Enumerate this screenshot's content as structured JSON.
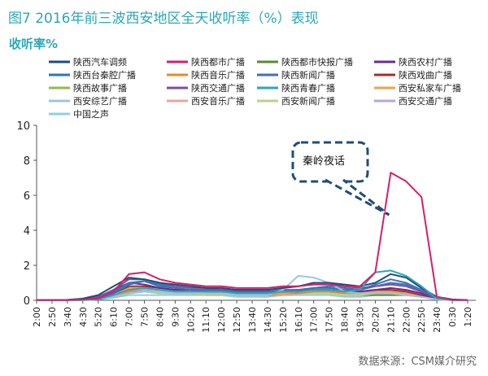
{
  "figure_title": "图7  2016年前三波西安地区全天收听率（%）表现",
  "unit_title": "收听率%",
  "source": "数据来源：CSM媒介研究",
  "colors": {
    "accent": "#2aa7b6"
  },
  "chart_data": {
    "type": "line",
    "xlabel": "",
    "ylabel": "",
    "ylim": [
      0,
      10
    ],
    "yticks": [
      0,
      2,
      4,
      6,
      8,
      10
    ],
    "grid": false,
    "legend_position": "top",
    "x": [
      "2:00",
      "2:50",
      "3:40",
      "4:30",
      "5:20",
      "6:10",
      "7:00",
      "7:50",
      "8:40",
      "9:30",
      "10:20",
      "11:10",
      "12:00",
      "12:50",
      "13:40",
      "14:30",
      "15:20",
      "16:10",
      "17:00",
      "17:50",
      "18:40",
      "19:30",
      "20:20",
      "21:10",
      "22:00",
      "22:50",
      "23:40",
      "0:30",
      "1:20"
    ],
    "annotation": "秦岭夜话",
    "series": [
      {
        "name": "陕西汽车调频",
        "color": "#1f4e79",
        "values": [
          0.02,
          0.02,
          0.03,
          0.1,
          0.3,
          0.8,
          1.3,
          1.2,
          1.0,
          0.9,
          0.8,
          0.7,
          0.7,
          0.6,
          0.6,
          0.6,
          0.7,
          0.8,
          1.0,
          1.0,
          0.9,
          0.8,
          1.0,
          1.5,
          1.3,
          0.7,
          0.2,
          0.05,
          0.02
        ]
      },
      {
        "name": "陕西都市广播",
        "color": "#d61f69",
        "values": [
          0.02,
          0.02,
          0.02,
          0.05,
          0.1,
          0.5,
          1.5,
          1.6,
          1.2,
          1.0,
          0.9,
          0.8,
          0.8,
          0.7,
          0.7,
          0.7,
          0.8,
          0.8,
          0.9,
          0.9,
          0.8,
          0.8,
          1.6,
          7.3,
          6.8,
          5.9,
          0.2,
          0.03,
          0.02
        ]
      },
      {
        "name": "陕西都市快报广播",
        "color": "#5c8a34",
        "values": [
          0.01,
          0.01,
          0.01,
          0.02,
          0.05,
          0.2,
          0.4,
          0.5,
          0.4,
          0.4,
          0.4,
          0.3,
          0.3,
          0.3,
          0.3,
          0.3,
          0.3,
          0.4,
          0.4,
          0.4,
          0.3,
          0.3,
          0.3,
          0.3,
          0.3,
          0.2,
          0.1,
          0.02,
          0.01
        ]
      },
      {
        "name": "陕西农村广播",
        "color": "#6a2c8c",
        "values": [
          0.02,
          0.02,
          0.02,
          0.05,
          0.2,
          0.6,
          1.0,
          0.9,
          0.7,
          0.6,
          0.6,
          0.5,
          0.5,
          0.5,
          0.5,
          0.5,
          0.5,
          0.6,
          0.6,
          0.6,
          0.5,
          0.5,
          0.6,
          0.7,
          0.6,
          0.4,
          0.1,
          0.02,
          0.02
        ]
      },
      {
        "name": "陕西台秦腔广播",
        "color": "#2e75b6",
        "values": [
          0.02,
          0.02,
          0.02,
          0.05,
          0.1,
          0.4,
          0.9,
          1.1,
          0.9,
          0.7,
          0.6,
          0.6,
          0.5,
          0.5,
          0.5,
          0.5,
          0.5,
          0.6,
          0.7,
          0.8,
          0.7,
          0.6,
          0.8,
          1.0,
          0.9,
          0.5,
          0.1,
          0.02,
          0.02
        ]
      },
      {
        "name": "陕西音乐广播",
        "color": "#e38b2e",
        "values": [
          0.01,
          0.01,
          0.01,
          0.02,
          0.05,
          0.2,
          0.5,
          0.6,
          0.5,
          0.4,
          0.4,
          0.4,
          0.4,
          0.3,
          0.3,
          0.3,
          0.4,
          0.4,
          0.5,
          0.5,
          0.4,
          0.4,
          0.5,
          0.5,
          0.4,
          0.3,
          0.1,
          0.02,
          0.01
        ]
      },
      {
        "name": "陕西新闻广播",
        "color": "#3f6fb5",
        "values": [
          0.02,
          0.02,
          0.02,
          0.05,
          0.15,
          0.5,
          1.0,
          1.1,
          0.8,
          0.7,
          0.6,
          0.6,
          0.6,
          0.5,
          0.5,
          0.5,
          0.6,
          0.6,
          0.7,
          0.7,
          0.6,
          0.6,
          0.9,
          1.2,
          1.0,
          0.6,
          0.1,
          0.02,
          0.02
        ]
      },
      {
        "name": "陕西戏曲广播",
        "color": "#a0302c",
        "values": [
          0.02,
          0.02,
          0.02,
          0.04,
          0.1,
          0.4,
          0.8,
          0.8,
          0.7,
          0.6,
          0.6,
          0.5,
          0.5,
          0.5,
          0.5,
          0.5,
          0.5,
          0.5,
          0.6,
          0.6,
          0.5,
          0.5,
          0.6,
          0.6,
          0.5,
          0.3,
          0.1,
          0.02,
          0.02
        ]
      },
      {
        "name": "陕西故事广播",
        "color": "#8fbc4a",
        "values": [
          0.01,
          0.01,
          0.01,
          0.02,
          0.05,
          0.2,
          0.4,
          0.5,
          0.4,
          0.4,
          0.4,
          0.3,
          0.4,
          0.3,
          0.3,
          0.3,
          0.4,
          0.4,
          0.4,
          0.4,
          0.3,
          0.3,
          0.4,
          0.4,
          0.3,
          0.2,
          0.05,
          0.01,
          0.01
        ]
      },
      {
        "name": "陕西交通广播",
        "color": "#7a4fa3",
        "values": [
          0.02,
          0.02,
          0.02,
          0.05,
          0.2,
          0.6,
          1.2,
          1.2,
          1.0,
          0.8,
          0.7,
          0.7,
          0.6,
          0.6,
          0.6,
          0.6,
          0.7,
          0.8,
          1.0,
          1.0,
          0.8,
          0.7,
          0.8,
          0.9,
          0.8,
          0.5,
          0.1,
          0.02,
          0.02
        ]
      },
      {
        "name": "陕西青春广播",
        "color": "#2aa7b6",
        "values": [
          0.01,
          0.01,
          0.01,
          0.02,
          0.05,
          0.3,
          0.6,
          0.7,
          0.6,
          0.5,
          0.5,
          0.5,
          0.5,
          0.4,
          0.4,
          0.4,
          0.5,
          0.5,
          0.6,
          0.6,
          0.5,
          0.6,
          1.6,
          1.7,
          1.4,
          0.8,
          0.1,
          0.02,
          0.01
        ]
      },
      {
        "name": "西安私家车广播",
        "color": "#f0a04b",
        "values": [
          0.01,
          0.01,
          0.01,
          0.03,
          0.1,
          0.3,
          0.7,
          0.7,
          0.6,
          0.5,
          0.5,
          0.4,
          0.4,
          0.4,
          0.4,
          0.4,
          0.4,
          0.5,
          0.6,
          0.6,
          0.5,
          0.4,
          0.5,
          0.5,
          0.4,
          0.3,
          0.05,
          0.01,
          0.01
        ]
      },
      {
        "name": "西安综艺广播",
        "color": "#9dc3e6",
        "values": [
          0.01,
          0.01,
          0.01,
          0.02,
          0.05,
          0.2,
          0.4,
          0.5,
          0.5,
          0.4,
          0.4,
          0.4,
          0.4,
          0.3,
          0.3,
          0.3,
          0.6,
          1.4,
          1.3,
          1.0,
          0.5,
          0.4,
          0.4,
          0.4,
          0.3,
          0.2,
          0.05,
          0.01,
          0.01
        ]
      },
      {
        "name": "西安音乐广播",
        "color": "#e6a79c",
        "values": [
          0.01,
          0.01,
          0.01,
          0.02,
          0.05,
          0.2,
          0.4,
          0.5,
          0.4,
          0.4,
          0.4,
          0.3,
          0.3,
          0.3,
          0.3,
          0.3,
          0.3,
          0.4,
          0.4,
          0.4,
          0.3,
          0.3,
          0.4,
          0.4,
          0.3,
          0.2,
          0.05,
          0.01,
          0.01
        ]
      },
      {
        "name": "西安新闻广播",
        "color": "#b5d48a",
        "values": [
          0.01,
          0.01,
          0.01,
          0.02,
          0.05,
          0.2,
          0.5,
          0.5,
          0.4,
          0.4,
          0.4,
          0.3,
          0.3,
          0.3,
          0.3,
          0.3,
          0.4,
          0.4,
          0.4,
          0.4,
          0.3,
          0.3,
          0.4,
          0.4,
          0.3,
          0.2,
          0.05,
          0.01,
          0.01
        ]
      },
      {
        "name": "西安交通广播",
        "color": "#b4a7d6",
        "values": [
          0.01,
          0.01,
          0.01,
          0.03,
          0.1,
          0.3,
          0.6,
          0.6,
          0.5,
          0.5,
          0.5,
          0.4,
          0.4,
          0.4,
          0.4,
          0.4,
          0.5,
          0.5,
          0.6,
          0.6,
          0.5,
          0.4,
          0.5,
          0.5,
          0.4,
          0.3,
          0.05,
          0.01,
          0.01
        ]
      },
      {
        "name": "中国之声",
        "color": "#8fd0dc",
        "values": [
          0.01,
          0.01,
          0.01,
          0.02,
          0.05,
          0.15,
          0.3,
          0.3,
          0.3,
          0.3,
          0.3,
          0.3,
          0.3,
          0.2,
          0.2,
          0.2,
          0.3,
          0.3,
          0.3,
          0.3,
          0.2,
          0.2,
          0.3,
          0.3,
          0.3,
          0.2,
          0.05,
          0.01,
          0.01
        ]
      }
    ]
  }
}
